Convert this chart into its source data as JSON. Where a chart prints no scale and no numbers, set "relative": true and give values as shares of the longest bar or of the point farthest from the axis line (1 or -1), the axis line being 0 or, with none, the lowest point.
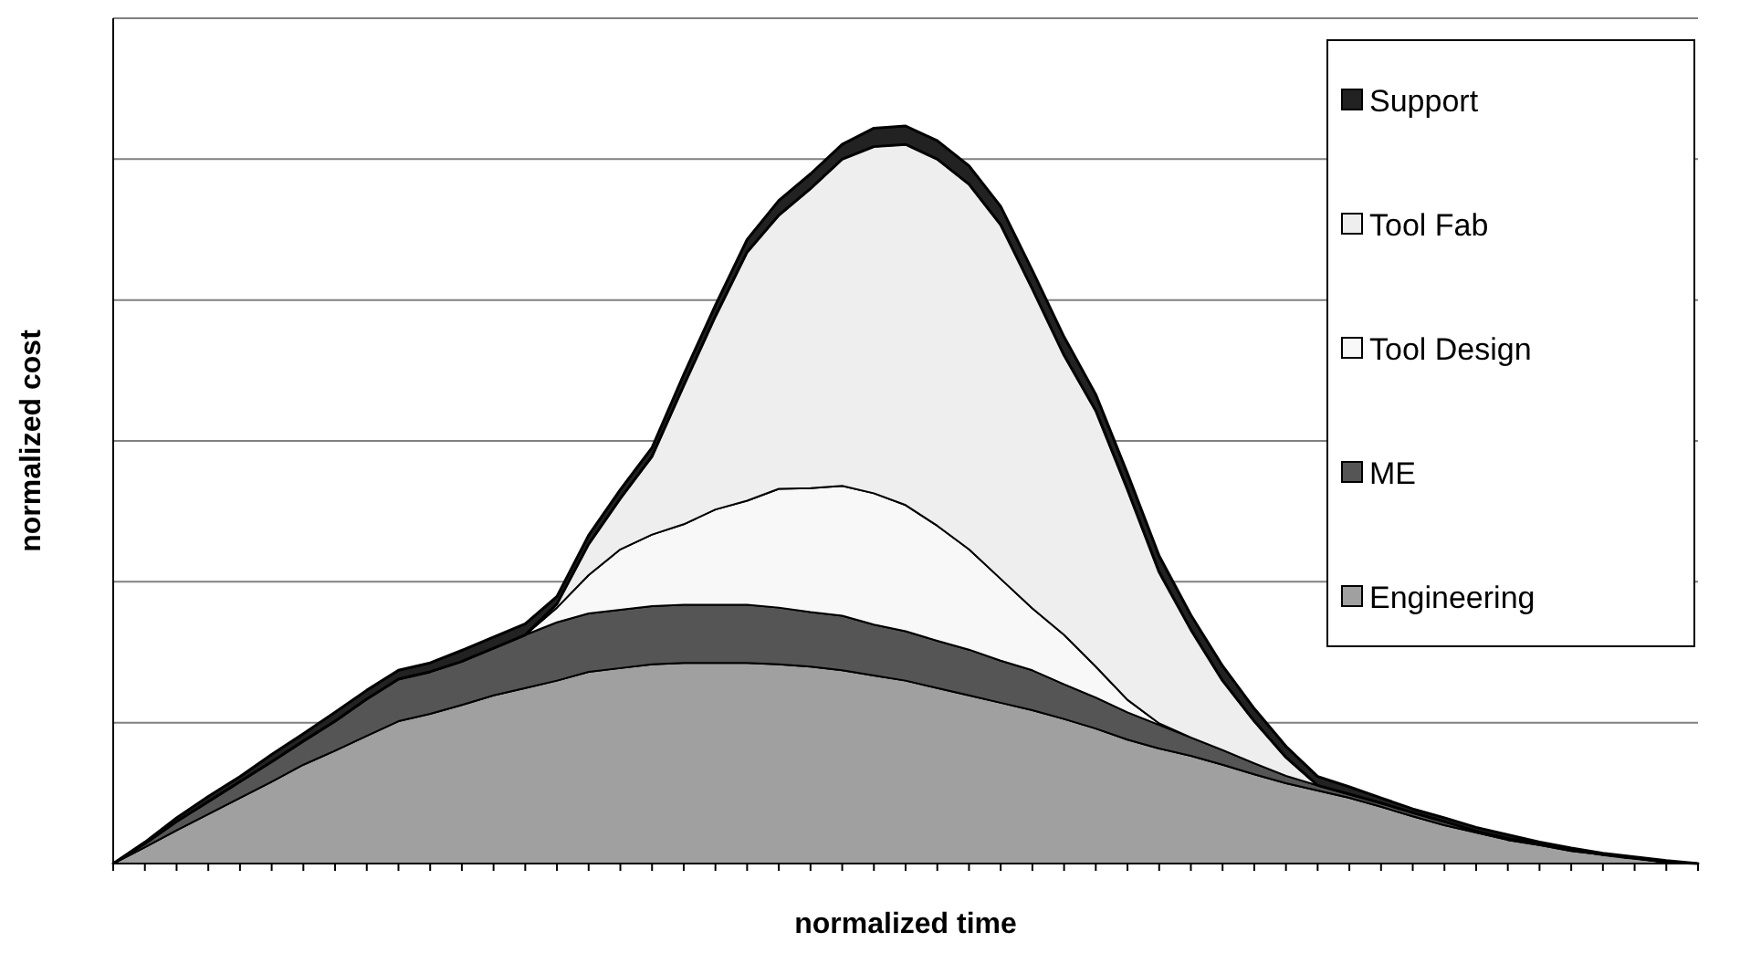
{
  "chart_data": {
    "type": "area",
    "stacked": true,
    "relative": true,
    "xlabel": "normalized time",
    "ylabel": "normalized cost",
    "grid": "y",
    "legend": "top right",
    "categories": [
      null,
      null,
      null,
      null,
      null,
      null,
      null,
      null,
      null,
      null,
      null,
      null,
      null,
      null,
      null,
      null,
      null,
      null,
      null,
      null,
      null,
      null,
      null,
      null,
      null,
      null,
      null,
      null,
      null,
      null,
      null,
      null,
      null,
      null,
      null,
      null,
      null,
      null,
      null,
      null,
      null,
      null,
      null,
      null,
      null,
      null,
      null,
      null,
      null,
      null,
      null
    ],
    "series": [
      {
        "name": "Engineering",
        "color": "#a0a0a0",
        "values": [
          0,
          0.022,
          0.045,
          0.067,
          0.089,
          0.111,
          0.134,
          0.153,
          0.173,
          0.193,
          0.203,
          0.215,
          0.228,
          0.238,
          0.248,
          0.26,
          0.265,
          0.27,
          0.272,
          0.272,
          0.272,
          0.27,
          0.267,
          0.262,
          0.255,
          0.248,
          0.238,
          0.228,
          0.218,
          0.208,
          0.196,
          0.183,
          0.168,
          0.156,
          0.146,
          0.134,
          0.121,
          0.109,
          0.099,
          0.089,
          0.077,
          0.064,
          0.052,
          0.042,
          0.032,
          0.025,
          0.017,
          0.012,
          0.007,
          0.002,
          0
        ]
      },
      {
        "name": "ME",
        "color": "#555555",
        "values": [
          0,
          0.005,
          0.012,
          0.017,
          0.022,
          0.027,
          0.032,
          0.04,
          0.05,
          0.057,
          0.057,
          0.059,
          0.064,
          0.072,
          0.079,
          0.079,
          0.079,
          0.079,
          0.079,
          0.079,
          0.079,
          0.077,
          0.074,
          0.074,
          0.069,
          0.067,
          0.064,
          0.062,
          0.057,
          0.054,
          0.047,
          0.042,
          0.037,
          0.032,
          0.025,
          0.02,
          0.015,
          0.01,
          0.007,
          0.005,
          0.005,
          0.005,
          0.005,
          0.002,
          0.002,
          0.002,
          0.002,
          0,
          0,
          0,
          0
        ]
      },
      {
        "name": "Tool Design",
        "color": "#f8f8f8",
        "values": [
          0,
          0,
          0,
          0,
          0,
          0,
          0,
          0,
          0,
          0,
          0,
          0,
          0,
          0,
          0.02,
          0.052,
          0.082,
          0.097,
          0.109,
          0.129,
          0.141,
          0.161,
          0.168,
          0.176,
          0.178,
          0.171,
          0.156,
          0.136,
          0.111,
          0.084,
          0.067,
          0.042,
          0.017,
          0.002,
          0,
          0,
          0,
          0,
          0,
          0,
          0,
          0,
          0,
          0,
          0,
          0,
          0,
          0,
          0,
          0,
          0
        ]
      },
      {
        "name": "Tool Fab",
        "color": "#eeeeee",
        "values": [
          0,
          0,
          0,
          0,
          0,
          0,
          0,
          0,
          0,
          0,
          0,
          0,
          0,
          0,
          0.005,
          0.042,
          0.069,
          0.106,
          0.188,
          0.262,
          0.337,
          0.371,
          0.406,
          0.443,
          0.47,
          0.489,
          0.497,
          0.495,
          0.48,
          0.433,
          0.379,
          0.347,
          0.285,
          0.205,
          0.146,
          0.094,
          0.057,
          0.025,
          0,
          0,
          0,
          0,
          0,
          0,
          0,
          0,
          0,
          0,
          0,
          0,
          0
        ]
      },
      {
        "name": "Support",
        "color": "#222222",
        "values": [
          0,
          0.002,
          0.005,
          0.007,
          0.007,
          0.01,
          0.01,
          0.012,
          0.012,
          0.012,
          0.012,
          0.015,
          0.015,
          0.015,
          0.01,
          0.012,
          0.012,
          0.012,
          0.015,
          0.015,
          0.017,
          0.02,
          0.02,
          0.02,
          0.025,
          0.025,
          0.025,
          0.025,
          0.025,
          0.025,
          0.025,
          0.022,
          0.022,
          0.022,
          0.02,
          0.02,
          0.017,
          0.015,
          0.012,
          0.01,
          0.007,
          0.005,
          0.005,
          0.005,
          0.005,
          0.002,
          0.002,
          0.002,
          0.002,
          0.002,
          0
        ]
      }
    ]
  }
}
